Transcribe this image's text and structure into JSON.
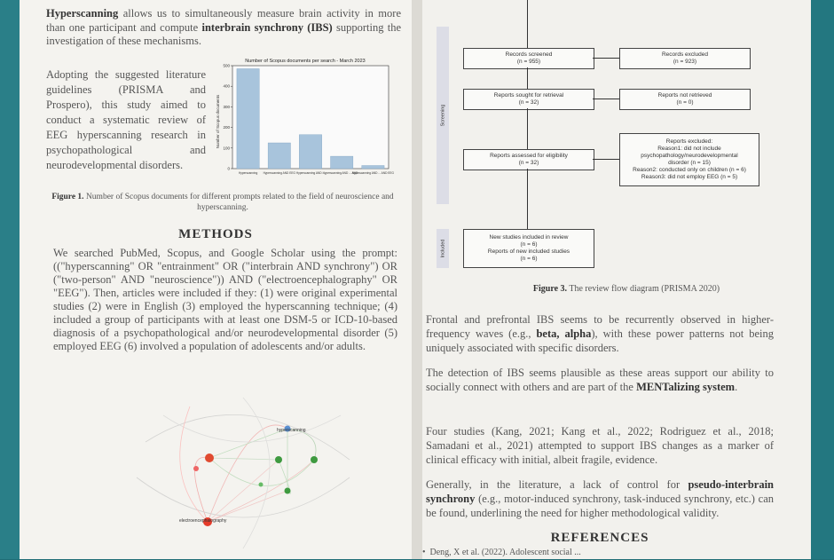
{
  "intro": {
    "term": "Hyperscanning",
    "rest": " allows us to simultaneously measure brain activity in more than one participant and compute ",
    "ibs": "interbrain synchrony (IBS)",
    "tail": " supporting the investigation of these mechanisms."
  },
  "aim": "Adopting the suggested literature guidelines (PRISMA and Prospero), this study aimed to conduct a systematic review of EEG hyperscanning research in psychopathological and neurodevelopmental disorders.",
  "chart_data": {
    "type": "bar",
    "title": "Number of Scopus documents per search - March 2023",
    "ylabel": "Number of Scopus documents",
    "xlabel": "",
    "categories": [
      "Hyperscanning",
      "Hyperscanning AND EEG",
      "Hyperscanning AND ...",
      "Hyperscanning AND ... AND ...",
      "Hyperscanning AND ... AND EEG"
    ],
    "values": [
      485,
      125,
      165,
      60,
      15
    ],
    "yticks": [
      0,
      100,
      200,
      300,
      400,
      500
    ],
    "ylim": [
      0,
      500
    ],
    "color": "#a8c4dc"
  },
  "fig1": {
    "label": "Figure 1.",
    "text": " Number of Scopus documents for different prompts related to the field of neuroscience and hyperscanning."
  },
  "methods": {
    "heading": "METHODS",
    "body": "We searched PubMed, Scopus, and Google Scholar using the prompt: ((\"hyperscanning\" OR \"entrainment\" OR (\"interbrain AND synchrony\") OR (\"two-person\" AND \"neuroscience\")) AND (\"electroencephalography\" OR \"EEG\"). Then, articles were included if they: (1) were original experimental studies (2) were in English (3) employed the hyperscanning technique; (4) included a group of participants with at least one DSM-5 or ICD-10-based diagnosis of a psychopathological and/or neurodevelopmental disorder (5) employed EEG (6) involved a population of adolescents and/or adults."
  },
  "network": {
    "label_hyper": "hyperscanning",
    "label_eeg": "electroencephalography"
  },
  "flow": {
    "screened": [
      "Records screened",
      "(n = 955)"
    ],
    "excluded": [
      "Records excluded",
      "(n = 923)"
    ],
    "sought": [
      "Reports sought for retrieval",
      "(n = 32)"
    ],
    "not_retrieved": [
      "Reports not retrieved",
      "(n = 0)"
    ],
    "assessed": [
      "Reports assessed for eligibility",
      "(n = 32)"
    ],
    "excluded2": [
      "Reports excluded:",
      "Reason1: did not include",
      "psychopathology/neurodevelopmental",
      "disorder (n = 15)",
      "Reason2: conducted only on children (n = 6)",
      "Reason3: did not employ EEG (n = 5)"
    ],
    "included": [
      "New studies included in review",
      "(n = 6)",
      "Reports of new included studies",
      "(n = 6)"
    ],
    "side_screening": "Screening",
    "side_included": "Included"
  },
  "fig3": {
    "label": "Figure 3.",
    "text": " The review flow diagram (PRISMA 2020)"
  },
  "para1": {
    "a": "Frontal and prefrontal IBS seems to be recurrently observed in higher-frequency waves (e.g., ",
    "b": "beta, alpha",
    "c": "), with these power patterns not being uniquely associated with specific disorders."
  },
  "para2": {
    "a": "The detection of IBS seems plausible as these areas support our ability to socially connect with others and are part of the ",
    "b": "MENTalizing system",
    "c": "."
  },
  "para3": "Four studies (Kang, 2021; Kang et al., 2022; Rodriguez et al., 2018; Samadani et al., 2021) attempted to support IBS changes as a marker of clinical efficacy with initial, albeit fragile, evidence.",
  "para4": {
    "a": "Generally, in the literature, a lack of control for ",
    "b": "pseudo-interbrain synchrony",
    "c": " (e.g., motor-induced synchrony, task-induced synchrony, etc.) can be found, underlining the need for higher methodological validity."
  },
  "references": {
    "heading": "REFERENCES",
    "first": "Deng, X et al. (2022). Adolescent social ..."
  }
}
